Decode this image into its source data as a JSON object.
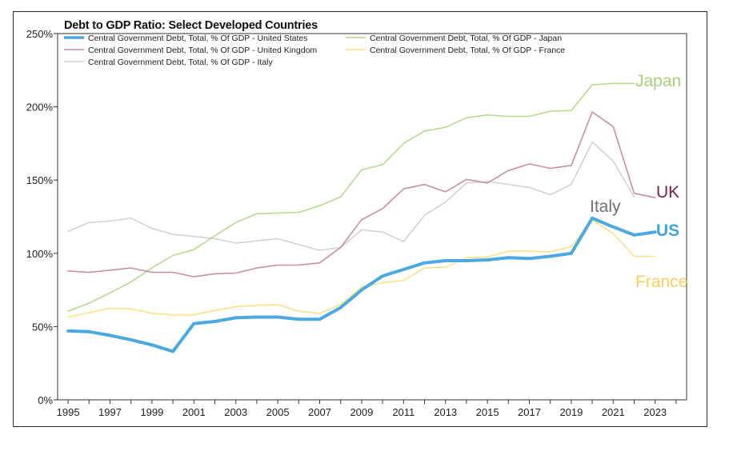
{
  "chart_data": {
    "type": "line",
    "title": "Debt to GDP Ratio: Select Developed Countries",
    "xlabel": "",
    "ylabel": "",
    "x": [
      1995,
      1996,
      1997,
      1998,
      1999,
      2000,
      2001,
      2002,
      2003,
      2004,
      2005,
      2006,
      2007,
      2008,
      2009,
      2010,
      2011,
      2012,
      2013,
      2014,
      2015,
      2016,
      2017,
      2018,
      2019,
      2020,
      2021,
      2022,
      2023
    ],
    "xlim": [
      1994.5,
      2024.5
    ],
    "ylim": [
      0,
      250
    ],
    "y_ticks": [
      0,
      50,
      100,
      150,
      200,
      250
    ],
    "y_tick_labels": [
      "0%",
      "50%",
      "100%",
      "150%",
      "200%",
      "250%"
    ],
    "x_ticks": [
      1995,
      1997,
      1999,
      2001,
      2003,
      2005,
      2007,
      2009,
      2011,
      2013,
      2015,
      2017,
      2019,
      2021,
      2023
    ],
    "x_tick_labels": [
      "1995",
      "1997",
      "1999",
      "2001",
      "2003",
      "2005",
      "2007",
      "2009",
      "2011",
      "2013",
      "2015",
      "2017",
      "2019",
      "2021",
      "2023"
    ],
    "grid": false,
    "legend_position": "top",
    "series": [
      {
        "key": "us",
        "name": "Central Government Debt, Total, % Of GDP - United States",
        "label": "US",
        "color": "#4aa9e0",
        "label_color": "#3ea4e0",
        "bold": true,
        "values": [
          47,
          46.5,
          44,
          41,
          37.5,
          33,
          52,
          53.5,
          56,
          56.5,
          56.5,
          55,
          55,
          63,
          75,
          84.5,
          89,
          93.5,
          95,
          95,
          95.5,
          97,
          96.5,
          98,
          100,
          124,
          118,
          112.5,
          114.5
        ]
      },
      {
        "key": "japan",
        "name": "Central Government Debt, Total, % Of GDP - Japan",
        "label": "Japan",
        "color": "#b8d98a",
        "label_color": "#a6d17a",
        "bold": false,
        "values": [
          60.5,
          66,
          73,
          80.5,
          90,
          98.5,
          102.5,
          112,
          121,
          127,
          127.5,
          128,
          132.5,
          138.5,
          157,
          160.5,
          175,
          183.5,
          186,
          192.5,
          194.5,
          193.5,
          193.5,
          197,
          197.5,
          215,
          216,
          216,
          null
        ]
      },
      {
        "key": "uk",
        "name": "Central Government Debt, Total, % Of GDP - United Kingdom",
        "label": "UK",
        "color": "#c6909c",
        "label_color": "#7a1f4d",
        "bold": false,
        "values": [
          88,
          87,
          88.5,
          90,
          87,
          87,
          84,
          86,
          86.5,
          90,
          92,
          92,
          93.5,
          104,
          123,
          130.5,
          144,
          147,
          142,
          150.5,
          148,
          156.5,
          161,
          158,
          160,
          196.5,
          186.5,
          141,
          138
        ]
      },
      {
        "key": "france",
        "name": "Central Government Debt, Total, % Of GDP - France",
        "label": "France",
        "color": "#f9e183",
        "label_color": "#f7cf5c",
        "bold": false,
        "values": [
          56.5,
          59.5,
          62.5,
          62,
          59,
          58,
          58,
          61,
          63.5,
          64.5,
          65,
          60.5,
          59,
          65,
          77,
          80,
          81.5,
          90,
          90.5,
          97,
          97.5,
          101.5,
          101.5,
          101,
          104.5,
          123,
          113.5,
          98,
          98
        ]
      },
      {
        "key": "italy",
        "name": "Central Government Debt, Total, % Of GDP - Italy",
        "label": "Italy",
        "color": "#d2d2d2",
        "label_color": "#6e6e6e",
        "bold": false,
        "values": [
          115,
          121,
          122,
          124,
          117,
          113,
          111.5,
          110,
          107,
          108.5,
          110,
          106,
          102,
          104,
          116,
          114.5,
          108,
          126,
          135,
          148,
          149,
          147,
          145,
          140,
          147,
          176,
          163,
          138.5,
          null
        ]
      }
    ]
  }
}
